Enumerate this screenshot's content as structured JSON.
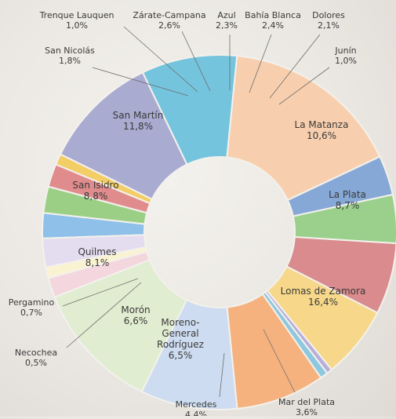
{
  "chart_data": {
    "type": "pie",
    "donut": true,
    "title": "",
    "unit": "%",
    "slices": [
      {
        "label": "Azul",
        "value_text": "2,3%",
        "value": 2.3,
        "color": "#8fc0ea"
      },
      {
        "label": "Bahía Blanca",
        "value_text": "2,4%",
        "value": 2.4,
        "color": "#9ccf86"
      },
      {
        "label": "Dolores",
        "value_text": "2,1%",
        "value": 2.1,
        "color": "#e08c8c"
      },
      {
        "label": "Junín",
        "value_text": "1,0%",
        "value": 1.0,
        "color": "#f3cd66"
      },
      {
        "label": "La Matanza",
        "value_text": "10,6%",
        "value": 10.6,
        "color": "#a9abd1"
      },
      {
        "label": "La Plata",
        "value_text": "8,7%",
        "value": 8.7,
        "color": "#74c4dd"
      },
      {
        "label": "Lomas de Zamora",
        "value_text": "16,4%",
        "value": 16.4,
        "color": "#f8cfae"
      },
      {
        "label": "Mar del Plata",
        "value_text": "3,6%",
        "value": 3.6,
        "color": "#86a8d6"
      },
      {
        "label": "Mercedes",
        "value_text": "4,4%",
        "value": 4.4,
        "color": "#9acf8c"
      },
      {
        "label": "Moreno-General Rodríguez",
        "value_text": "6,5%",
        "value": 6.5,
        "color": "#d98b8d"
      },
      {
        "label": "Morón",
        "value_text": "6,6%",
        "value": 6.6,
        "color": "#f7d88a"
      },
      {
        "label": "Necochea",
        "value_text": "0,5%",
        "value": 0.5,
        "color": "#b7aedb"
      },
      {
        "label": "Pergamino",
        "value_text": "0,7%",
        "value": 0.7,
        "color": "#8ec8df"
      },
      {
        "label": "Quilmes",
        "value_text": "8,1%",
        "value": 8.1,
        "color": "#f5b27f"
      },
      {
        "label": "San Isidro",
        "value_text": "8,8%",
        "value": 8.8,
        "color": "#cddcf0"
      },
      {
        "label": "San Martín",
        "value_text": "11,8%",
        "value": 11.8,
        "color": "#e1edd1"
      },
      {
        "label": "San Nicolás",
        "value_text": "1,8%",
        "value": 1.8,
        "color": "#f3d6de"
      },
      {
        "label": "Trenque Lauquen",
        "value_text": "1,0%",
        "value": 1.0,
        "color": "#faf3d2"
      },
      {
        "label": "Zárate-Campana",
        "value_text": "2,6%",
        "value": 2.6,
        "color": "#e4dcef"
      }
    ]
  }
}
